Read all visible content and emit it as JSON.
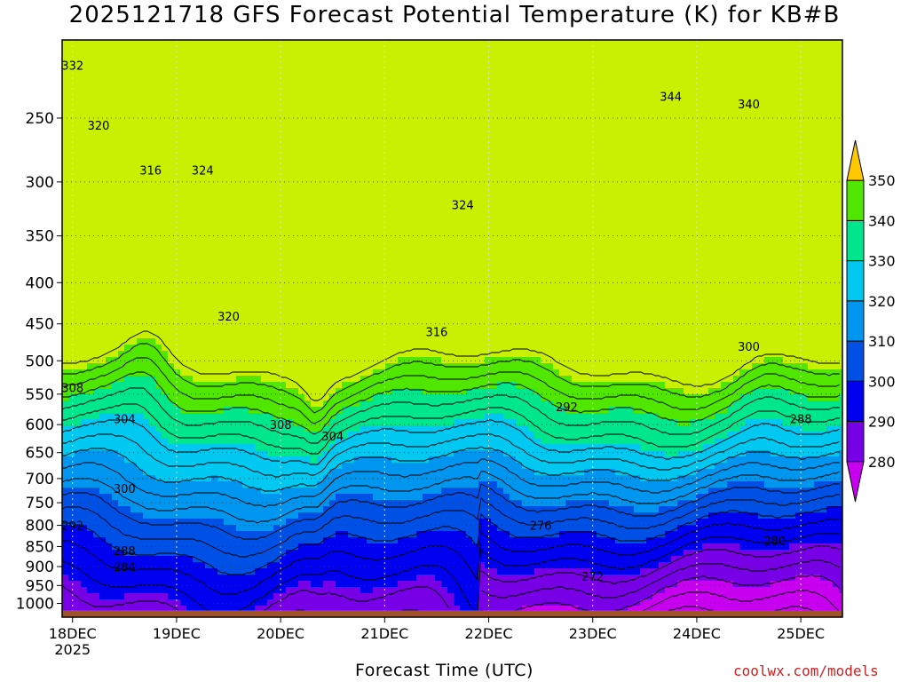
{
  "chart_data": {
    "type": "heatmap",
    "title": "2025121718 GFS Forecast Potential Temperature (K) for KB#B",
    "xlabel": "Forecast Time (UTC)",
    "ylabel": "",
    "credit": "coolwx.com/models",
    "x_tick_labels": [
      "18DEC",
      "19DEC",
      "20DEC",
      "21DEC",
      "22DEC",
      "23DEC",
      "24DEC",
      "25DEC"
    ],
    "x_year_label": "2025",
    "x_range_days": [
      -0.1,
      7.4
    ],
    "y_axis": "pressure (hPa), log scale, inverted",
    "y_ticks": [
      250,
      300,
      350,
      400,
      450,
      500,
      550,
      600,
      650,
      700,
      750,
      800,
      850,
      900,
      950,
      1000
    ],
    "y_range": [
      200,
      1040
    ],
    "colorbar": {
      "levels": [
        280,
        290,
        300,
        310,
        320,
        330,
        340,
        350
      ],
      "labels": [
        "280",
        "290",
        "300",
        "310",
        "320",
        "330",
        "340",
        "350"
      ],
      "extend": "both",
      "colors": [
        "#c800f0",
        "#7800e6",
        "#0000f0",
        "#0050e6",
        "#0096f0",
        "#00c8f0",
        "#00e68c",
        "#50e600",
        "#c8f000",
        "#ffc800"
      ]
    },
    "contour_interval": 4,
    "contour_labels_sample": [
      {
        "x": "18DEC 00Z",
        "p": 215,
        "theta": 332
      },
      {
        "x": "18DEC 06Z",
        "p": 255,
        "theta": 320
      },
      {
        "x": "18DEC 18Z",
        "p": 290,
        "theta": 316
      },
      {
        "x": "19DEC 06Z",
        "p": 290,
        "theta": 324
      },
      {
        "x": "18DEC 00Z",
        "p": 540,
        "theta": 308
      },
      {
        "x": "18DEC 12Z",
        "p": 590,
        "theta": 304
      },
      {
        "x": "18DEC 12Z",
        "p": 720,
        "theta": 300
      },
      {
        "x": "18DEC 00Z",
        "p": 800,
        "theta": 292
      },
      {
        "x": "18DEC 12Z",
        "p": 860,
        "theta": 288
      },
      {
        "x": "18DEC 12Z",
        "p": 900,
        "theta": 284
      },
      {
        "x": "19DEC 12Z",
        "p": 440,
        "theta": 320
      },
      {
        "x": "20DEC 00Z",
        "p": 600,
        "theta": 308
      },
      {
        "x": "20DEC 12Z",
        "p": 620,
        "theta": 304
      },
      {
        "x": "21DEC 12Z",
        "p": 460,
        "theta": 316
      },
      {
        "x": "21DEC 18Z",
        "p": 320,
        "theta": 324
      },
      {
        "x": "22DEC 18Z",
        "p": 570,
        "theta": 292
      },
      {
        "x": "22DEC 12Z",
        "p": 800,
        "theta": 276
      },
      {
        "x": "23DEC 00Z",
        "p": 925,
        "theta": 272
      },
      {
        "x": "23DEC 18Z",
        "p": 235,
        "theta": 344
      },
      {
        "x": "24DEC 12Z",
        "p": 240,
        "theta": 340
      },
      {
        "x": "24DEC 12Z",
        "p": 480,
        "theta": 300
      },
      {
        "x": "25DEC 00Z",
        "p": 590,
        "theta": 288
      },
      {
        "x": "24DEC 18Z",
        "p": 835,
        "theta": 280
      }
    ]
  }
}
